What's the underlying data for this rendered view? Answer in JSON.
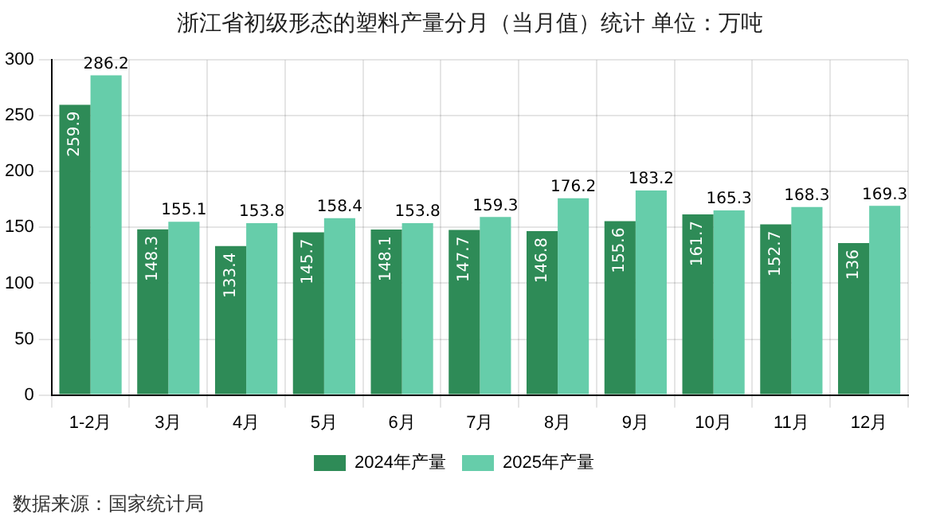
{
  "chart_data": {
    "type": "bar",
    "title": "浙江省初级形态的塑料产量分月（当月值）统计  单位：万吨",
    "categories": [
      "1-2月",
      "3月",
      "4月",
      "5月",
      "6月",
      "7月",
      "8月",
      "9月",
      "10月",
      "11月",
      "12月"
    ],
    "series": [
      {
        "name": "2024年产量",
        "color": "#2e8b57",
        "values": [
          259.9,
          148.3,
          133.4,
          145.7,
          148.1,
          147.7,
          146.8,
          155.6,
          161.7,
          152.7,
          136
        ]
      },
      {
        "name": "2025年产量",
        "color": "#66cdaa",
        "values": [
          286.2,
          155.1,
          153.8,
          158.4,
          153.8,
          159.3,
          176.2,
          183.2,
          165.3,
          168.3,
          169.3
        ]
      }
    ],
    "ylim": [
      0,
      300
    ],
    "yticks": [
      0,
      50,
      100,
      150,
      200,
      250,
      300
    ],
    "grid": true,
    "legend": "bottom",
    "data_labels": true,
    "annotations": [
      "数据来源：国家统计局"
    ]
  }
}
